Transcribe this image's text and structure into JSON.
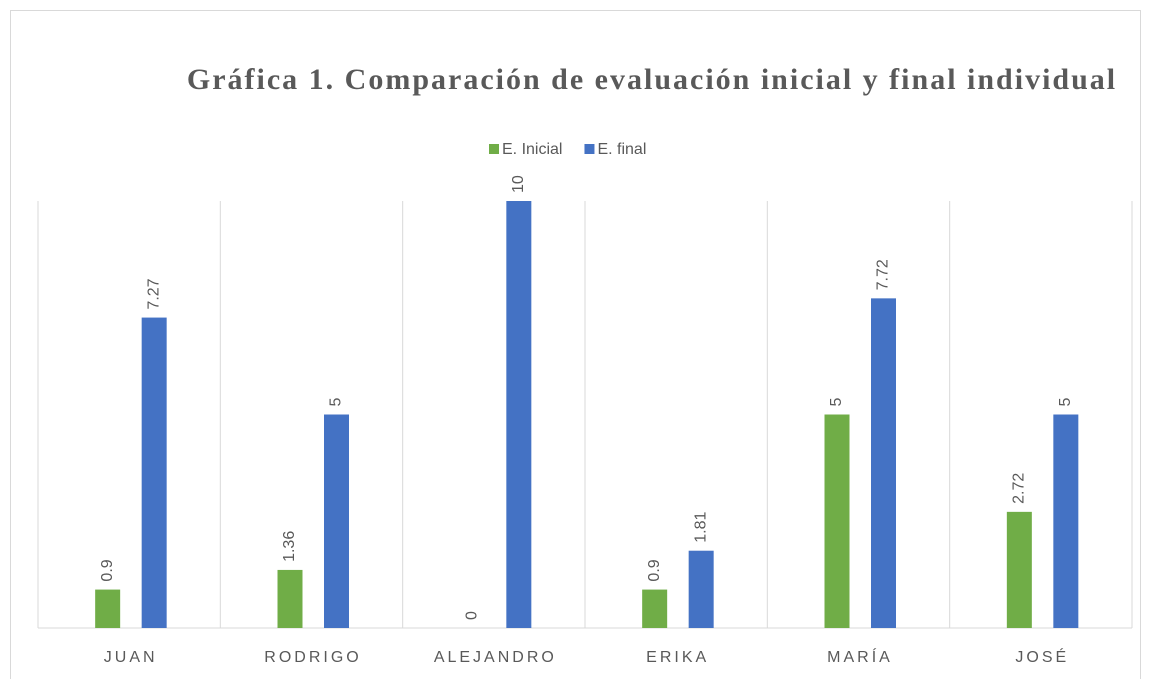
{
  "chart_data": {
    "type": "bar",
    "title": "Gráfica 1. Comparación de evaluación inicial y final individual",
    "categories": [
      "JUAN",
      "RODRIGO",
      "ALEJANDRO",
      "ERIKA",
      "MARÍA",
      "JOSÉ"
    ],
    "series": [
      {
        "name": "E. Inicial",
        "color": "#70ad47",
        "values": [
          0.9,
          1.36,
          0,
          0.9,
          5,
          2.72
        ]
      },
      {
        "name": "E. final",
        "color": "#4472c4",
        "values": [
          7.27,
          5,
          10,
          1.81,
          7.72,
          5
        ]
      }
    ],
    "ylim": [
      0,
      10
    ],
    "legend": "top"
  }
}
